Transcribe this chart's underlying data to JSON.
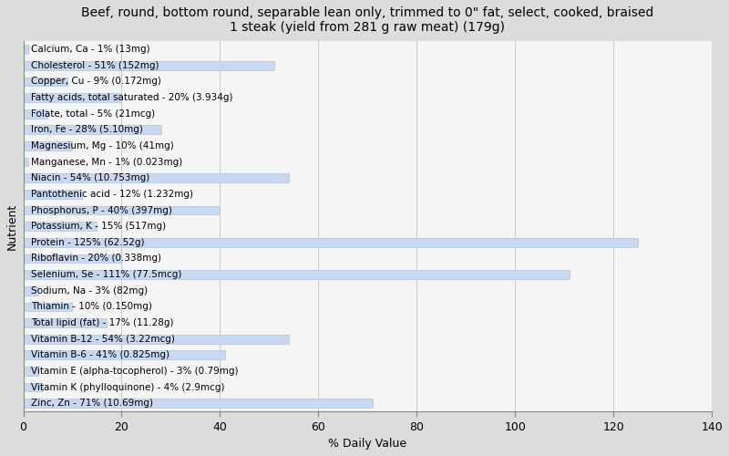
{
  "title": "Beef, round, bottom round, separable lean only, trimmed to 0\" fat, select, cooked, braised\n1 steak (yield from 281 g raw meat) (179g)",
  "xlabel": "% Daily Value",
  "ylabel": "Nutrient",
  "background_color": "#dcdcdc",
  "plot_bg_color": "#f5f5f5",
  "bar_color": "#c8d8f0",
  "bar_edge_color": "#b0c4de",
  "nutrients": [
    {
      "label": "Calcium, Ca - 1% (13mg)",
      "value": 1
    },
    {
      "label": "Cholesterol - 51% (152mg)",
      "value": 51
    },
    {
      "label": "Copper, Cu - 9% (0.172mg)",
      "value": 9
    },
    {
      "label": "Fatty acids, total saturated - 20% (3.934g)",
      "value": 20
    },
    {
      "label": "Folate, total - 5% (21mcg)",
      "value": 5
    },
    {
      "label": "Iron, Fe - 28% (5.10mg)",
      "value": 28
    },
    {
      "label": "Magnesium, Mg - 10% (41mg)",
      "value": 10
    },
    {
      "label": "Manganese, Mn - 1% (0.023mg)",
      "value": 1
    },
    {
      "label": "Niacin - 54% (10.753mg)",
      "value": 54
    },
    {
      "label": "Pantothenic acid - 12% (1.232mg)",
      "value": 12
    },
    {
      "label": "Phosphorus, P - 40% (397mg)",
      "value": 40
    },
    {
      "label": "Potassium, K - 15% (517mg)",
      "value": 15
    },
    {
      "label": "Protein - 125% (62.52g)",
      "value": 125
    },
    {
      "label": "Riboflavin - 20% (0.338mg)",
      "value": 20
    },
    {
      "label": "Selenium, Se - 111% (77.5mcg)",
      "value": 111
    },
    {
      "label": "Sodium, Na - 3% (82mg)",
      "value": 3
    },
    {
      "label": "Thiamin - 10% (0.150mg)",
      "value": 10
    },
    {
      "label": "Total lipid (fat) - 17% (11.28g)",
      "value": 17
    },
    {
      "label": "Vitamin B-12 - 54% (3.22mcg)",
      "value": 54
    },
    {
      "label": "Vitamin B-6 - 41% (0.825mg)",
      "value": 41
    },
    {
      "label": "Vitamin E (alpha-tocopherol) - 3% (0.79mg)",
      "value": 3
    },
    {
      "label": "Vitamin K (phylloquinone) - 4% (2.9mcg)",
      "value": 4
    },
    {
      "label": "Zinc, Zn - 71% (10.69mg)",
      "value": 71
    }
  ],
  "xlim": [
    0,
    140
  ],
  "xticks": [
    0,
    20,
    40,
    60,
    80,
    100,
    120,
    140
  ],
  "title_fontsize": 10,
  "label_fontsize": 7.5,
  "tick_fontsize": 9,
  "axis_label_fontsize": 9
}
